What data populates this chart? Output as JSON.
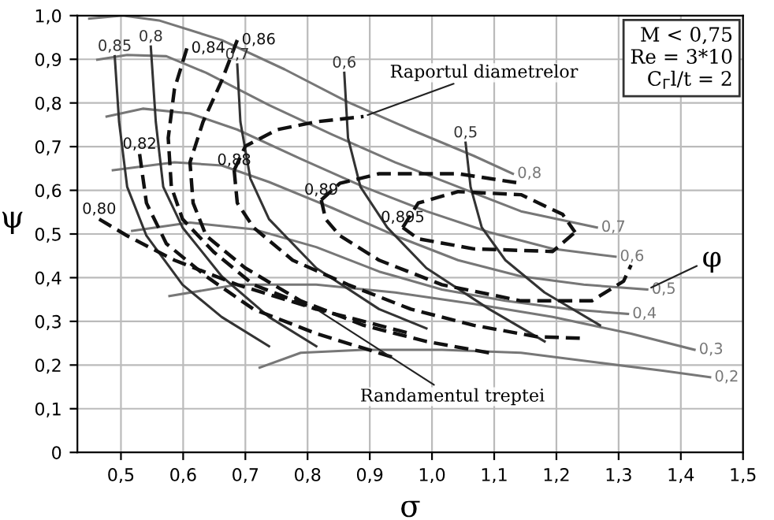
{
  "chart_data": {
    "type": "line",
    "xlabel": "σ",
    "ylabel": "ψ",
    "xlim": [
      0.43,
      1.5
    ],
    "ylim": [
      0,
      1.0
    ],
    "xticks": [
      {
        "value": 0.5,
        "label": "0,5"
      },
      {
        "value": 0.6,
        "label": "0,6"
      },
      {
        "value": 0.7,
        "label": "0,7"
      },
      {
        "value": 0.8,
        "label": "0,8"
      },
      {
        "value": 0.9,
        "label": "0,9"
      },
      {
        "value": 1.0,
        "label": "1,0"
      },
      {
        "value": 1.1,
        "label": "1,1"
      },
      {
        "value": 1.2,
        "label": "1,2"
      },
      {
        "value": 1.3,
        "label": "1,3"
      },
      {
        "value": 1.4,
        "label": "1,4"
      },
      {
        "value": 1.5,
        "label": "1,5"
      }
    ],
    "yticks": [
      0,
      {
        "value": 0.1,
        "label": "0,1"
      },
      {
        "value": 0.2,
        "label": "0,2"
      },
      {
        "value": 0.3,
        "label": "0,3"
      },
      {
        "value": 0.4,
        "label": "0,4"
      },
      {
        "value": 0.5,
        "label": "0,5"
      },
      {
        "value": 0.6,
        "label": "0,6"
      },
      {
        "value": 0.7,
        "label": "0,7"
      },
      {
        "value": 0.8,
        "label": "0,8"
      },
      {
        "value": 0.9,
        "label": "0,9"
      },
      {
        "value": 1.0,
        "label": "1,0"
      }
    ],
    "grid": true,
    "marker": "none",
    "series": [
      {
        "name": "0,8",
        "color": "#777777",
        "line_style": "solid",
        "x": [
          1.13,
          1.067,
          0.966,
          0.865,
          0.763,
          0.662,
          0.561,
          0.503,
          0.449
        ],
        "values": [
          0.638,
          0.679,
          0.739,
          0.802,
          0.877,
          0.944,
          0.989,
          1.0,
          0.993
        ]
      },
      {
        "name": "0,7",
        "color": "#777777",
        "line_style": "solid",
        "x": [
          1.265,
          1.143,
          1.042,
          0.941,
          0.839,
          0.738,
          0.637,
          0.573,
          0.51,
          0.462
        ],
        "values": [
          0.515,
          0.552,
          0.608,
          0.664,
          0.728,
          0.795,
          0.869,
          0.907,
          0.91,
          0.899
        ]
      },
      {
        "name": "0,6",
        "color": "#777777",
        "line_style": "solid",
        "x": [
          1.295,
          1.194,
          1.092,
          0.991,
          0.89,
          0.789,
          0.687,
          0.611,
          0.535,
          0.477
        ],
        "values": [
          0.448,
          0.466,
          0.504,
          0.552,
          0.608,
          0.672,
          0.739,
          0.776,
          0.787,
          0.769
        ]
      },
      {
        "name": "0,5",
        "color": "#777777",
        "line_style": "solid",
        "x": [
          1.346,
          1.244,
          1.143,
          1.042,
          0.941,
          0.839,
          0.738,
          0.662,
          0.586,
          0.487
        ],
        "values": [
          0.373,
          0.384,
          0.403,
          0.44,
          0.496,
          0.56,
          0.619,
          0.657,
          0.664,
          0.646
        ]
      },
      {
        "name": "0,4",
        "color": "#777777",
        "line_style": "solid",
        "x": [
          1.315,
          1.219,
          1.118,
          1.016,
          0.915,
          0.814,
          0.713,
          0.611,
          0.518
        ],
        "values": [
          0.317,
          0.328,
          0.347,
          0.373,
          0.414,
          0.47,
          0.511,
          0.526,
          0.507
        ]
      },
      {
        "name": "0,3",
        "color": "#777777",
        "line_style": "solid",
        "x": [
          1.422,
          1.32,
          1.194,
          1.067,
          0.941,
          0.814,
          0.687,
          0.578
        ],
        "values": [
          0.235,
          0.272,
          0.31,
          0.34,
          0.366,
          0.384,
          0.384,
          0.358
        ]
      },
      {
        "name": "0,2",
        "color": "#777777",
        "line_style": "solid",
        "x": [
          1.447,
          1.371,
          1.27,
          1.143,
          1.016,
          0.89,
          0.789,
          0.723
        ],
        "values": [
          0.172,
          0.187,
          0.205,
          0.228,
          0.235,
          0.235,
          0.228,
          0.194
        ]
      },
      {
        "name": "0,85",
        "color": "#333333",
        "line_style": "solid",
        "x": [
          0.49,
          0.497,
          0.51,
          0.541,
          0.599,
          0.662,
          0.738
        ],
        "values": [
          0.907,
          0.757,
          0.608,
          0.496,
          0.384,
          0.31,
          0.243
        ]
      },
      {
        "name": "0,8",
        "color": "#333333",
        "line_style": "solid",
        "x": [
          0.548,
          0.556,
          0.568,
          0.599,
          0.662,
          0.738,
          0.814
        ],
        "values": [
          0.929,
          0.757,
          0.608,
          0.515,
          0.403,
          0.31,
          0.243
        ]
      },
      {
        "name": "0,7",
        "color": "#333333",
        "line_style": "solid",
        "x": [
          0.687,
          0.692,
          0.708,
          0.738,
          0.814,
          0.915,
          0.991
        ],
        "values": [
          0.888,
          0.757,
          0.627,
          0.534,
          0.422,
          0.328,
          0.284
        ]
      },
      {
        "name": "0,6",
        "color": "#333333",
        "line_style": "solid",
        "x": [
          0.859,
          0.865,
          0.885,
          0.928,
          0.991,
          1.092,
          1.181
        ],
        "values": [
          0.869,
          0.72,
          0.608,
          0.515,
          0.422,
          0.328,
          0.254
        ]
      },
      {
        "name": "0,5",
        "color": "#333333",
        "line_style": "solid",
        "x": [
          1.054,
          1.062,
          1.08,
          1.118,
          1.181,
          1.27
        ],
        "values": [
          0.709,
          0.608,
          0.515,
          0.44,
          0.366,
          0.291
        ]
      },
      {
        "color": "#111111",
        "line_style": "dashed",
        "x": [
          0.953,
          0.978,
          1.042,
          1.143,
          1.21,
          1.23
        ],
        "values": [
          0.515,
          0.571,
          0.597,
          0.59,
          0.545,
          0.504
        ]
      },
      {
        "name": "0,895",
        "color": "#111111",
        "line_style": "dashed",
        "x": [
          0.953,
          0.978,
          1.067,
          1.194,
          1.23
        ],
        "values": [
          0.515,
          0.489,
          0.466,
          0.46,
          0.504
        ]
      },
      {
        "name": "0,89",
        "color": "#111111",
        "line_style": "dashed",
        "x": [
          0.822,
          0.852,
          0.915,
          1.042,
          1.143
        ],
        "values": [
          0.578,
          0.616,
          0.638,
          0.638,
          0.616
        ]
      },
      {
        "color": "#111111",
        "line_style": "dashed",
        "x": [
          0.822,
          0.829,
          0.852,
          0.915,
          1.016,
          1.143,
          1.257,
          1.308,
          1.32
        ],
        "values": [
          0.578,
          0.534,
          0.496,
          0.44,
          0.384,
          0.347,
          0.347,
          0.392,
          0.429
        ]
      },
      {
        "name": "0,88",
        "color": "#111111",
        "line_style": "dashed",
        "x": [
          0.682,
          0.7,
          0.751,
          0.814,
          0.89
        ],
        "values": [
          0.646,
          0.701,
          0.739,
          0.757,
          0.769
        ]
      },
      {
        "color": "#111111",
        "line_style": "dashed",
        "x": [
          0.682,
          0.687,
          0.713,
          0.776,
          0.865,
          0.966,
          1.067,
          1.168,
          1.244
        ],
        "values": [
          0.646,
          0.571,
          0.515,
          0.44,
          0.384,
          0.328,
          0.291,
          0.265,
          0.261
        ]
      },
      {
        "name": "0,86",
        "color": "#111111",
        "line_style": "dashed",
        "x": [
          0.687,
          0.662,
          0.632,
          0.611,
          0.616,
          0.637,
          0.7,
          0.789,
          0.89,
          0.991,
          1.092
        ],
        "values": [
          0.944,
          0.851,
          0.757,
          0.664,
          0.571,
          0.496,
          0.422,
          0.347,
          0.291,
          0.254,
          0.228
        ]
      },
      {
        "name": "0,84",
        "color": "#111111",
        "line_style": "dashed",
        "x": [
          0.606,
          0.586,
          0.576,
          0.581,
          0.599,
          0.649,
          0.713,
          0.814
        ],
        "values": [
          0.925,
          0.832,
          0.72,
          0.608,
          0.534,
          0.459,
          0.384,
          0.328
        ]
      },
      {
        "name": "0,82",
        "color": "#111111",
        "line_style": "dashed",
        "x": [
          0.53,
          0.541,
          0.573,
          0.637,
          0.713,
          0.814,
          0.941
        ],
        "values": [
          0.683,
          0.571,
          0.478,
          0.403,
          0.328,
          0.272,
          0.216
        ]
      },
      {
        "name": "0,80",
        "color": "#111111",
        "line_style": "dashed",
        "x": [
          0.465,
          0.51,
          0.586,
          0.687,
          0.814,
          0.966
        ],
        "values": [
          0.534,
          0.496,
          0.44,
          0.384,
          0.328,
          0.272
        ]
      }
    ],
    "annotations": [
      {
        "text": "Raportul diametrelor",
        "x": 0.89,
        "y": 0.769
      },
      {
        "text": "Randamentul treptei",
        "x": 0.814,
        "y": 0.328
      },
      {
        "text": "φ",
        "x": 1.346,
        "y": 0.373
      },
      "M < 0,75",
      "Re = 3*10",
      "C$_{Γ}$l/t = 2"
    ]
  }
}
